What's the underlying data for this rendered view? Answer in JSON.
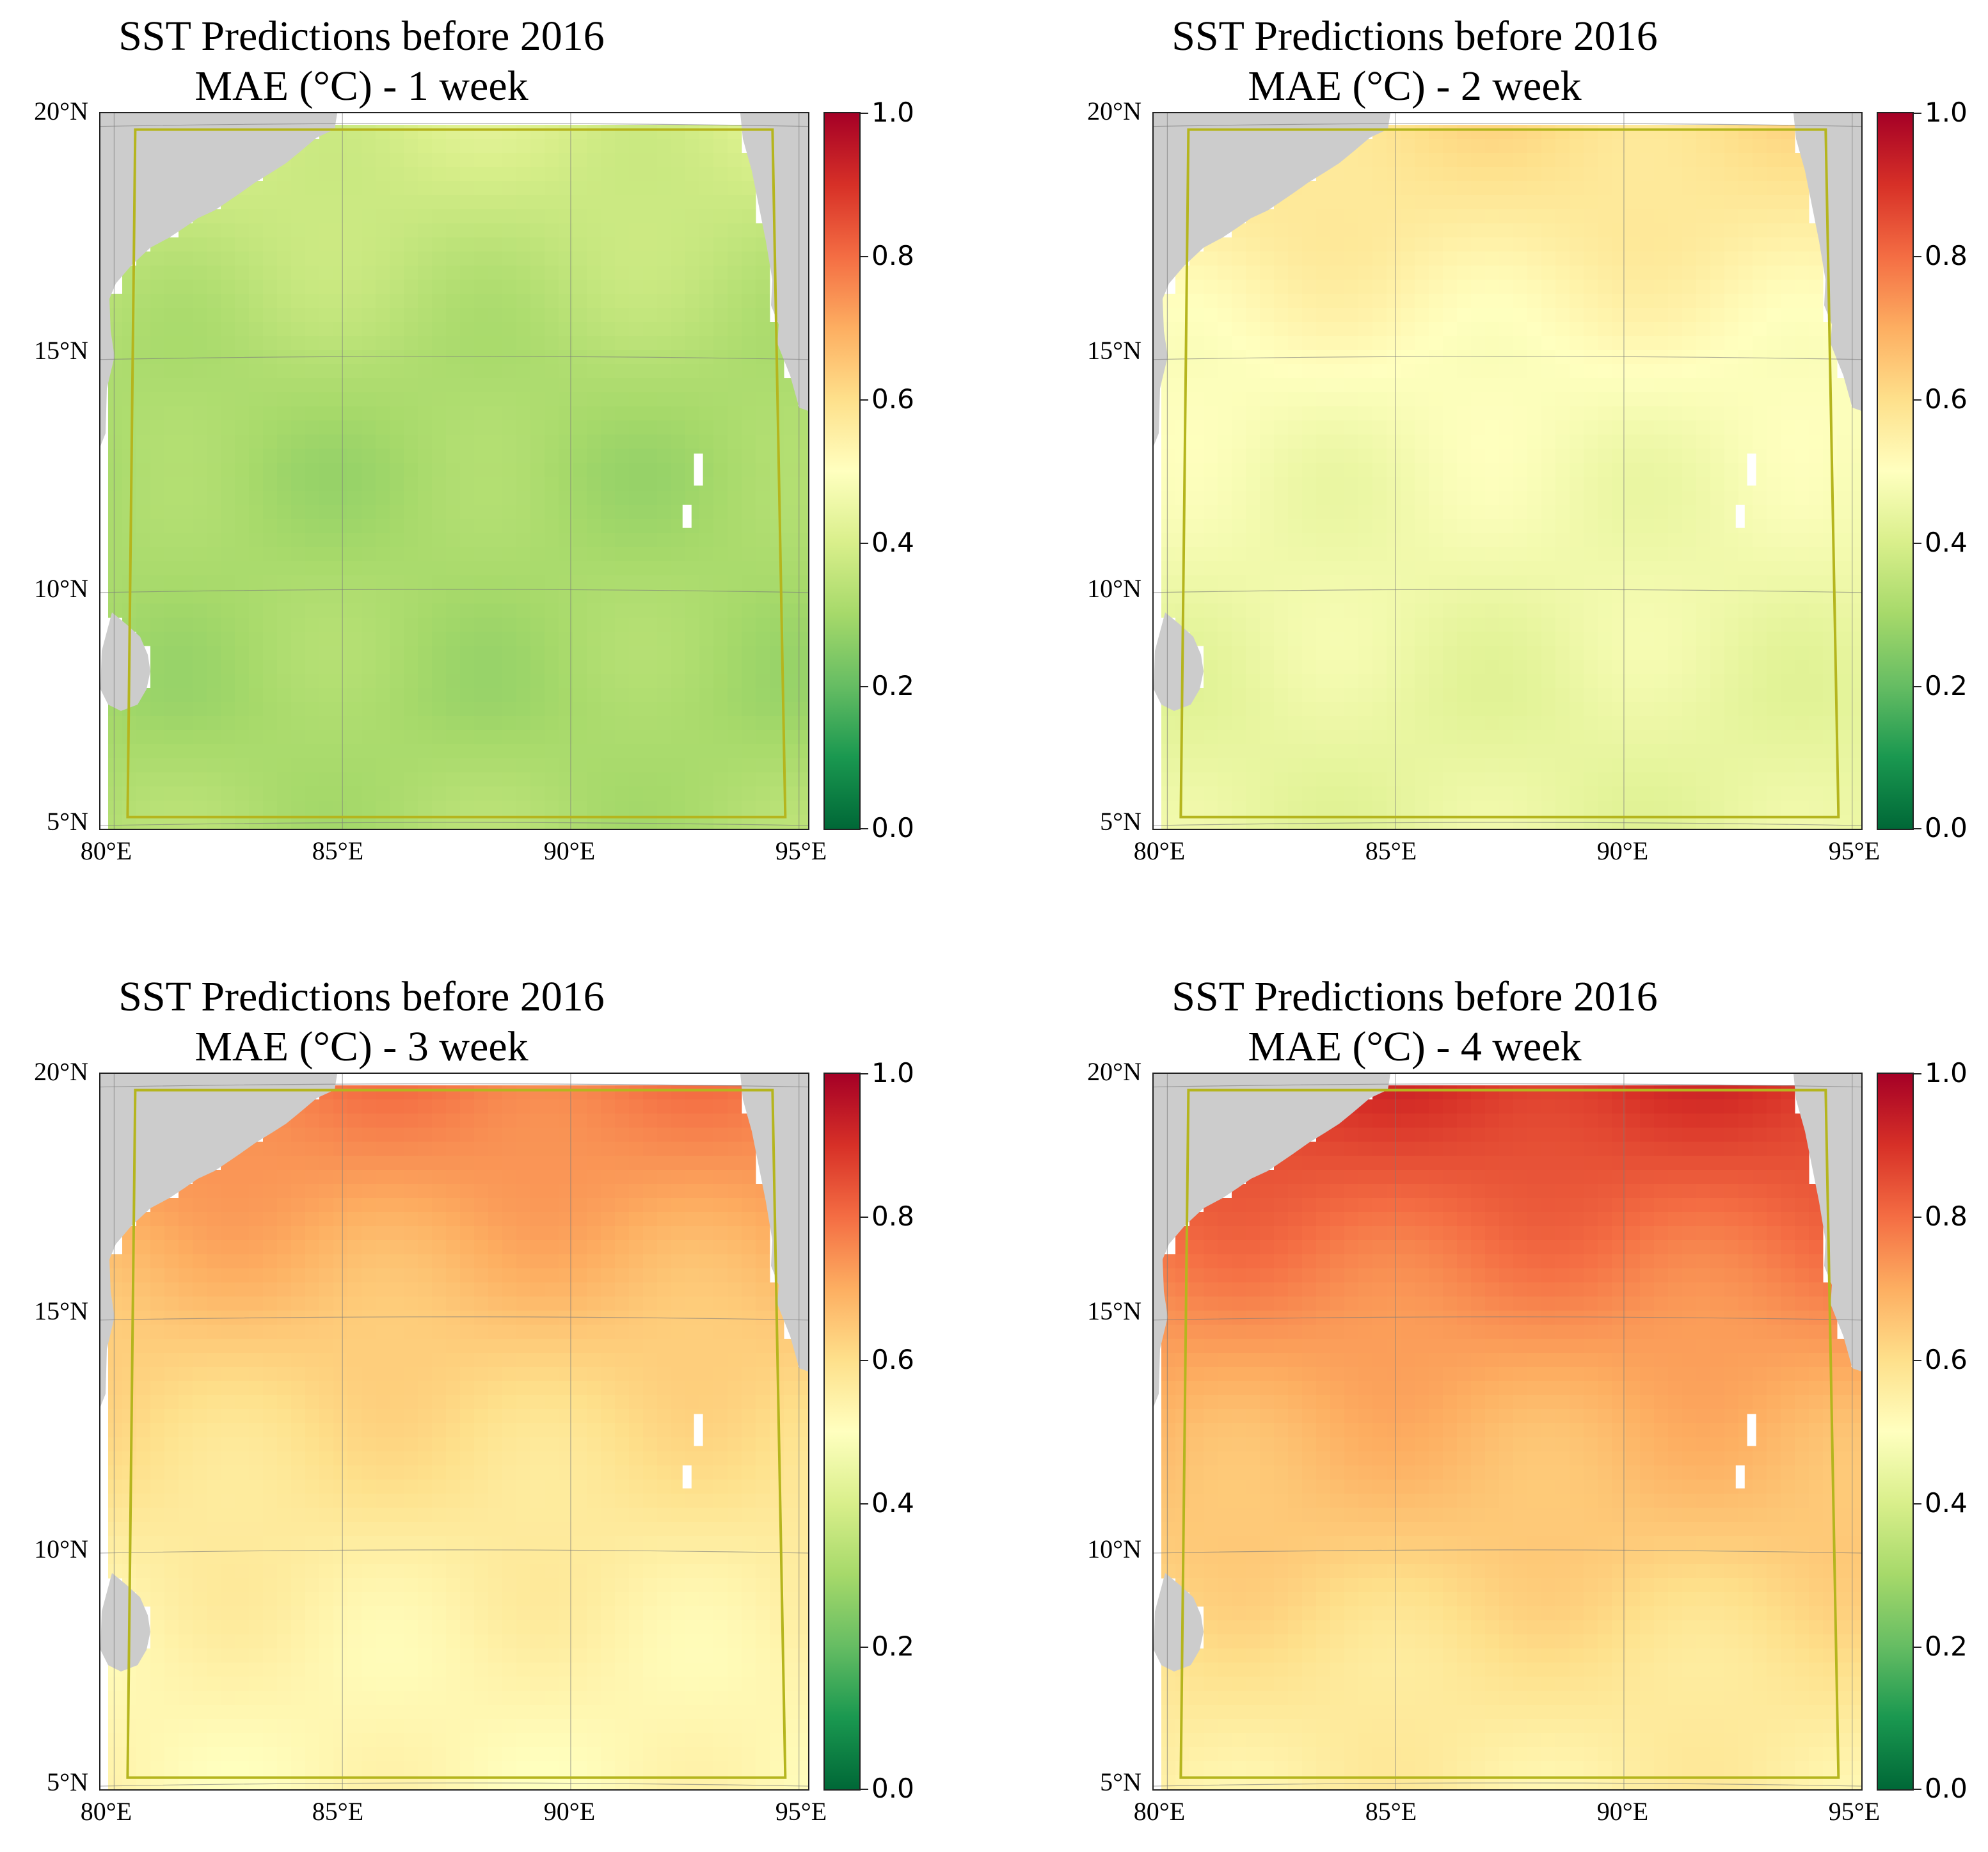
{
  "colors": {
    "land": "#cccccc",
    "boundary": "#b5b51e",
    "gridline": "#7a7a7a",
    "colormap": [
      "#006837",
      "#1a9850",
      "#66bd63",
      "#a6d96a",
      "#d9ef8b",
      "#ffffbf",
      "#fee08b",
      "#fdae61",
      "#f46d43",
      "#d73027",
      "#a50026"
    ]
  },
  "chart_data": [
    {
      "type": "heatmap",
      "title": "SST Predictions before 2016",
      "subtitle": "MAE (°C) - 1 week",
      "xlim": [
        79.7,
        95.2
      ],
      "ylim": [
        4.85,
        20.2
      ],
      "xticks": [
        80,
        85,
        90,
        95
      ],
      "xtick_labels": [
        "80°E",
        "85°E",
        "90°E",
        "95°E"
      ],
      "yticks": [
        5,
        10,
        15,
        20
      ],
      "ytick_labels": [
        "5°N",
        "10°N",
        "15°N",
        "20°N"
      ],
      "colorbar": {
        "vmin": 0.0,
        "vmax": 1.0,
        "ticks": [
          "0.0",
          "0.2",
          "0.4",
          "0.6",
          "0.8",
          "1.0"
        ],
        "cmap": "RdYlGn_r"
      },
      "mae_by_latitude": {
        "lat": [
          5,
          7.5,
          10,
          12.5,
          15,
          17.5,
          20
        ],
        "mae": [
          0.32,
          0.3,
          0.31,
          0.3,
          0.32,
          0.36,
          0.4
        ]
      }
    },
    {
      "type": "heatmap",
      "title": "SST Predictions before 2016",
      "subtitle": "MAE (°C) - 2 week",
      "xlim": [
        79.7,
        95.2
      ],
      "ylim": [
        4.85,
        20.2
      ],
      "xticks": [
        80,
        85,
        90,
        95
      ],
      "xtick_labels": [
        "80°E",
        "85°E",
        "90°E",
        "95°E"
      ],
      "yticks": [
        5,
        10,
        15,
        20
      ],
      "ytick_labels": [
        "5°N",
        "10°N",
        "15°N",
        "20°N"
      ],
      "colorbar": {
        "vmin": 0.0,
        "vmax": 1.0,
        "ticks": [
          "0.0",
          "0.2",
          "0.4",
          "0.6",
          "0.8",
          "1.0"
        ],
        "cmap": "RdYlGn_r"
      },
      "mae_by_latitude": {
        "lat": [
          5,
          7.5,
          10,
          12.5,
          15,
          17.5,
          20
        ],
        "mae": [
          0.44,
          0.44,
          0.46,
          0.47,
          0.5,
          0.56,
          0.6
        ]
      }
    },
    {
      "type": "heatmap",
      "title": "SST Predictions before 2016",
      "subtitle": "MAE (°C) - 3 week",
      "xlim": [
        79.7,
        95.2
      ],
      "ylim": [
        4.85,
        20.2
      ],
      "xticks": [
        80,
        85,
        90,
        95
      ],
      "xtick_labels": [
        "80°E",
        "85°E",
        "90°E",
        "95°E"
      ],
      "yticks": [
        5,
        10,
        15,
        20
      ],
      "ytick_labels": [
        "5°N",
        "10°N",
        "15°N",
        "20°N"
      ],
      "colorbar": {
        "vmin": 0.0,
        "vmax": 1.0,
        "ticks": [
          "0.0",
          "0.2",
          "0.4",
          "0.6",
          "0.8",
          "1.0"
        ],
        "cmap": "RdYlGn_r"
      },
      "mae_by_latitude": {
        "lat": [
          5,
          7.5,
          10,
          12.5,
          15,
          17.5,
          20
        ],
        "mae": [
          0.52,
          0.53,
          0.56,
          0.6,
          0.65,
          0.72,
          0.78
        ]
      }
    },
    {
      "type": "heatmap",
      "title": "SST Predictions before 2016",
      "subtitle": "MAE (°C) - 4 week",
      "xlim": [
        79.7,
        95.2
      ],
      "ylim": [
        4.85,
        20.2
      ],
      "xticks": [
        80,
        85,
        90,
        95
      ],
      "xtick_labels": [
        "80°E",
        "85°E",
        "90°E",
        "95°E"
      ],
      "yticks": [
        5,
        10,
        15,
        20
      ],
      "ytick_labels": [
        "5°N",
        "10°N",
        "15°N",
        "20°N"
      ],
      "colorbar": {
        "vmin": 0.0,
        "vmax": 1.0,
        "ticks": [
          "0.0",
          "0.2",
          "0.4",
          "0.6",
          "0.8",
          "1.0"
        ],
        "cmap": "RdYlGn_r"
      },
      "mae_by_latitude": {
        "lat": [
          5,
          7.5,
          10,
          12.5,
          15,
          17.5,
          20
        ],
        "mae": [
          0.55,
          0.58,
          0.64,
          0.68,
          0.74,
          0.82,
          0.9
        ]
      }
    }
  ]
}
